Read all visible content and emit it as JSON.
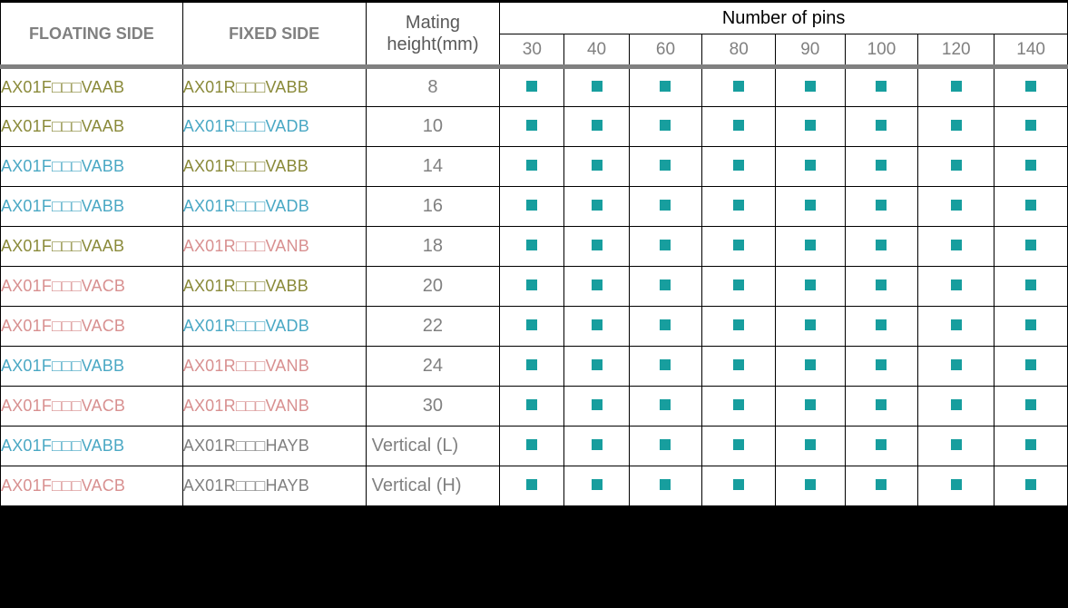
{
  "colors": {
    "marker": "#179e9e",
    "olive": "#8a8a3a",
    "blue": "#4aa8c4",
    "pink": "#d89090",
    "gray": "#808080",
    "header_text": "#808080",
    "border": "#000000",
    "bg": "#ffffff",
    "page_bg": "#000000"
  },
  "placeholder_glyph": "□",
  "header": {
    "floating": "FLOATING SIDE",
    "fixed": "FIXED SIDE",
    "mating_line1": "Mating",
    "mating_line2": "height(mm)",
    "pins_group": "Number of pins",
    "pins": [
      "30",
      "40",
      "60",
      "80",
      "90",
      "100",
      "120",
      "140"
    ]
  },
  "rows": [
    {
      "floating": {
        "pre": "AX01F",
        "suf": "VAAB",
        "color": "olive"
      },
      "fixed": {
        "pre": "AX01R",
        "suf": "VABB",
        "color": "olive"
      },
      "height": "8",
      "height_align": "center",
      "pins": [
        1,
        1,
        1,
        1,
        1,
        1,
        1,
        1
      ]
    },
    {
      "floating": {
        "pre": "AX01F",
        "suf": "VAAB",
        "color": "olive"
      },
      "fixed": {
        "pre": "AX01R",
        "suf": "VADB",
        "color": "blue"
      },
      "height": "10",
      "height_align": "center",
      "pins": [
        1,
        1,
        1,
        1,
        1,
        1,
        1,
        1
      ]
    },
    {
      "floating": {
        "pre": "AX01F",
        "suf": "VABB",
        "color": "blue"
      },
      "fixed": {
        "pre": "AX01R",
        "suf": "VABB",
        "color": "olive"
      },
      "height": "14",
      "height_align": "center",
      "pins": [
        1,
        1,
        1,
        1,
        1,
        1,
        1,
        1
      ]
    },
    {
      "floating": {
        "pre": "AX01F",
        "suf": "VABB",
        "color": "blue"
      },
      "fixed": {
        "pre": "AX01R",
        "suf": "VADB",
        "color": "blue"
      },
      "height": "16",
      "height_align": "center",
      "pins": [
        1,
        1,
        1,
        1,
        1,
        1,
        1,
        1
      ]
    },
    {
      "floating": {
        "pre": "AX01F",
        "suf": "VAAB",
        "color": "olive"
      },
      "fixed": {
        "pre": "AX01R",
        "suf": "VANB",
        "color": "pink"
      },
      "height": "18",
      "height_align": "center",
      "pins": [
        1,
        1,
        1,
        1,
        1,
        1,
        1,
        1
      ]
    },
    {
      "floating": {
        "pre": "AX01F",
        "suf": "VACB",
        "color": "pink"
      },
      "fixed": {
        "pre": "AX01R",
        "suf": "VABB",
        "color": "olive"
      },
      "height": "20",
      "height_align": "center",
      "pins": [
        1,
        1,
        1,
        1,
        1,
        1,
        1,
        1
      ]
    },
    {
      "floating": {
        "pre": "AX01F",
        "suf": "VACB",
        "color": "pink"
      },
      "fixed": {
        "pre": "AX01R",
        "suf": "VADB",
        "color": "blue"
      },
      "height": "22",
      "height_align": "center",
      "pins": [
        1,
        1,
        1,
        1,
        1,
        1,
        1,
        1
      ]
    },
    {
      "floating": {
        "pre": "AX01F",
        "suf": "VABB",
        "color": "blue"
      },
      "fixed": {
        "pre": "AX01R",
        "suf": "VANB",
        "color": "pink"
      },
      "height": "24",
      "height_align": "center",
      "pins": [
        1,
        1,
        1,
        1,
        1,
        1,
        1,
        1
      ]
    },
    {
      "floating": {
        "pre": "AX01F",
        "suf": "VACB",
        "color": "pink"
      },
      "fixed": {
        "pre": "AX01R",
        "suf": "VANB",
        "color": "pink"
      },
      "height": "30",
      "height_align": "center",
      "pins": [
        1,
        1,
        1,
        1,
        1,
        1,
        1,
        1
      ]
    },
    {
      "floating": {
        "pre": "AX01F",
        "suf": "VABB",
        "color": "blue"
      },
      "fixed": {
        "pre": "AX01R",
        "suf": "HAYB",
        "color": "gray"
      },
      "height": "Vertical (L)",
      "height_align": "left",
      "pins": [
        1,
        1,
        1,
        1,
        1,
        1,
        1,
        1
      ]
    },
    {
      "floating": {
        "pre": "AX01F",
        "suf": "VACB",
        "color": "pink"
      },
      "fixed": {
        "pre": "AX01R",
        "suf": "HAYB",
        "color": "gray"
      },
      "height": "Vertical (H)",
      "height_align": "left",
      "pins": [
        1,
        1,
        1,
        1,
        1,
        1,
        1,
        1
      ]
    }
  ]
}
